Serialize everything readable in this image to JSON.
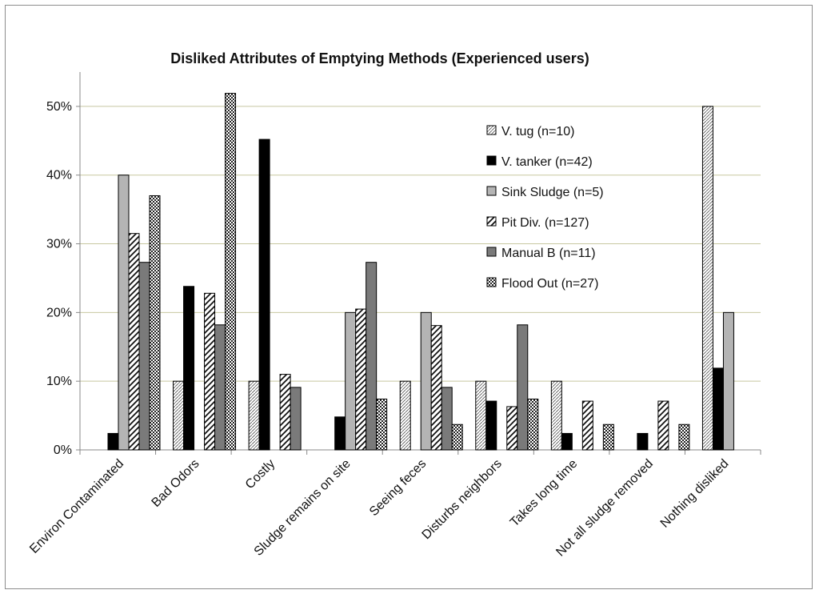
{
  "chart_data": {
    "type": "bar",
    "title": "Disliked Attributes of Emptying Methods (Experienced users)",
    "xlabel": "",
    "ylabel": "",
    "ylim": [
      0,
      0.55
    ],
    "yticks": [
      0,
      0.1,
      0.2,
      0.3,
      0.4,
      0.5
    ],
    "ytick_labels": [
      "0%",
      "10%",
      "20%",
      "30%",
      "40%",
      "50%"
    ],
    "grid": true,
    "legend_position": "top-right",
    "categories": [
      "Environ Contaminated",
      "Bad Odors",
      "Costly",
      "Sludge remains on site",
      "Seeing feces",
      "Disturbs neighbors",
      "Takes long time",
      "Not all sludge removed",
      "Nothing disliked"
    ],
    "series": [
      {
        "name": "V. tug (n=10)",
        "pattern": "dots",
        "values": [
          0,
          0.1,
          0.1,
          0,
          0.1,
          0.1,
          0.1,
          0,
          0.5
        ]
      },
      {
        "name": "V. tanker (n=42)",
        "pattern": "black",
        "values": [
          0.024,
          0.238,
          0.452,
          0.048,
          0,
          0.071,
          0.024,
          0.024,
          0.119
        ]
      },
      {
        "name": "Sink Sludge (n=5)",
        "pattern": "lightgray",
        "values": [
          0.4,
          0,
          0,
          0.2,
          0.2,
          0,
          0,
          0,
          0.2
        ]
      },
      {
        "name": "Pit Div. (n=127)",
        "pattern": "diagonal",
        "values": [
          0.315,
          0.228,
          0.11,
          0.205,
          0.181,
          0.063,
          0.071,
          0.071,
          0
        ]
      },
      {
        "name": "Manual B (n=11)",
        "pattern": "darkgray",
        "values": [
          0.273,
          0.182,
          0.091,
          0.273,
          0.091,
          0.182,
          0,
          0,
          0
        ]
      },
      {
        "name": "Flood Out (n=27)",
        "pattern": "checker",
        "values": [
          0.37,
          0.519,
          0,
          0.074,
          0.037,
          0.074,
          0.037,
          0.037,
          0
        ]
      }
    ]
  }
}
